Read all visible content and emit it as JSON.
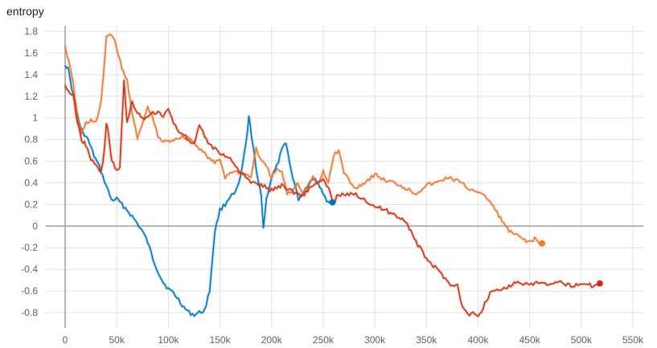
{
  "chart_data": {
    "type": "line",
    "title": "entropy",
    "xlabel": "",
    "ylabel": "",
    "xlim": [
      0,
      560000
    ],
    "ylim": [
      -0.9,
      1.85
    ],
    "x_ticks": [
      0,
      50000,
      100000,
      150000,
      200000,
      250000,
      300000,
      350000,
      400000,
      450000,
      500000,
      550000
    ],
    "x_tick_labels": [
      "0",
      "50k",
      "100k",
      "150k",
      "200k",
      "250k",
      "300k",
      "350k",
      "400k",
      "450k",
      "500k",
      "550k"
    ],
    "y_ticks": [
      -0.8,
      -0.6,
      -0.4,
      -0.2,
      0,
      0.2,
      0.4,
      0.6,
      0.8,
      1,
      1.2,
      1.4,
      1.6,
      1.8
    ],
    "y_tick_labels": [
      "-0.8",
      "-0.6",
      "-0.4",
      "-0.2",
      "0",
      "0.2",
      "0.4",
      "0.6",
      "0.8",
      "1",
      "1.2",
      "1.4",
      "1.6",
      "1.8"
    ],
    "grid": true,
    "colors": {
      "blue": "#0077bb",
      "orange": "#ee7733",
      "red": "#cc3311",
      "axis": "#9e9e9e",
      "grid": "#e0e0e0"
    },
    "series": [
      {
        "color": "#0077bb",
        "x": [
          0,
          3000,
          8000,
          15000,
          22000,
          28000,
          33000,
          38000,
          45000,
          50000,
          55000,
          60000,
          68000,
          75000,
          80000,
          85000,
          90000,
          95000,
          100000,
          105000,
          110000,
          115000,
          120000,
          125000,
          130000,
          135000,
          140000,
          145000,
          150000,
          155000,
          160000,
          165000,
          170000,
          175000,
          178000,
          182000,
          186000,
          190000,
          192000,
          195000,
          200000,
          205000,
          210000,
          214000,
          218000,
          222000,
          226000,
          230000,
          236000,
          242000,
          248000,
          252000,
          256000,
          259000
        ],
        "values": [
          1.5,
          1.45,
          1.2,
          0.9,
          0.8,
          0.65,
          0.55,
          0.42,
          0.24,
          0.25,
          0.2,
          0.15,
          0.05,
          -0.05,
          -0.15,
          -0.3,
          -0.42,
          -0.52,
          -0.58,
          -0.62,
          -0.68,
          -0.75,
          -0.8,
          -0.82,
          -0.8,
          -0.78,
          -0.6,
          -0.05,
          0.15,
          0.2,
          0.28,
          0.3,
          0.45,
          0.75,
          1.0,
          0.75,
          0.45,
          0.3,
          -0.02,
          0.25,
          0.45,
          0.55,
          0.7,
          0.78,
          0.55,
          0.4,
          0.25,
          0.3,
          0.4,
          0.45,
          0.35,
          0.25,
          0.22,
          0.22
        ]
      },
      {
        "color": "#ee7733",
        "x": [
          0,
          3000,
          8000,
          12000,
          16000,
          20000,
          25000,
          30000,
          35000,
          40000,
          45000,
          50000,
          55000,
          60000,
          65000,
          70000,
          75000,
          80000,
          85000,
          90000,
          95000,
          100000,
          110000,
          120000,
          130000,
          140000,
          145000,
          150000,
          155000,
          160000,
          170000,
          180000,
          185000,
          190000,
          195000,
          200000,
          205000,
          210000,
          215000,
          220000,
          225000,
          230000,
          235000,
          240000,
          245000,
          250000,
          255000,
          260000,
          265000,
          270000,
          280000,
          290000,
          300000,
          310000,
          320000,
          330000,
          340000,
          350000,
          360000,
          370000,
          380000,
          390000,
          400000,
          405000,
          410000,
          420000,
          430000,
          440000,
          450000,
          455000,
          460000,
          462000
        ],
        "values": [
          1.65,
          1.55,
          1.3,
          1.0,
          0.85,
          0.95,
          0.98,
          0.95,
          1.15,
          1.75,
          1.78,
          1.65,
          1.45,
          1.35,
          1.05,
          0.8,
          0.95,
          1.1,
          1.0,
          0.82,
          0.78,
          0.78,
          0.82,
          0.82,
          0.72,
          0.62,
          0.58,
          0.62,
          0.45,
          0.5,
          0.5,
          0.45,
          0.72,
          0.6,
          0.55,
          0.45,
          0.52,
          0.5,
          0.3,
          0.32,
          0.4,
          0.32,
          0.35,
          0.45,
          0.38,
          0.5,
          0.4,
          0.65,
          0.7,
          0.5,
          0.35,
          0.4,
          0.48,
          0.42,
          0.4,
          0.35,
          0.3,
          0.38,
          0.4,
          0.45,
          0.42,
          0.35,
          0.32,
          0.28,
          0.25,
          0.1,
          -0.05,
          -0.1,
          -0.15,
          -0.12,
          -0.17,
          -0.16
        ]
      },
      {
        "color": "#cc3311",
        "x": [
          0,
          3000,
          8000,
          12000,
          16000,
          20000,
          25000,
          30000,
          35000,
          38000,
          40000,
          42000,
          45000,
          50000,
          53000,
          57000,
          60000,
          65000,
          70000,
          75000,
          80000,
          85000,
          90000,
          95000,
          100000,
          105000,
          110000,
          115000,
          120000,
          125000,
          130000,
          140000,
          150000,
          160000,
          170000,
          180000,
          190000,
          200000,
          210000,
          220000,
          230000,
          240000,
          250000,
          255000,
          260000,
          265000,
          270000,
          280000,
          290000,
          300000,
          310000,
          320000,
          330000,
          340000,
          350000,
          360000,
          370000,
          375000,
          380000,
          385000,
          390000,
          395000,
          400000,
          405000,
          410000,
          415000,
          420000,
          430000,
          440000,
          450000,
          460000,
          470000,
          480000,
          490000,
          500000,
          510000,
          518000
        ],
        "values": [
          1.3,
          1.25,
          1.2,
          0.95,
          0.8,
          0.75,
          0.62,
          0.55,
          0.5,
          0.7,
          0.95,
          0.85,
          0.62,
          0.5,
          0.55,
          1.35,
          0.95,
          1.15,
          1.05,
          1.0,
          1.0,
          1.05,
          1.05,
          1.0,
          1.1,
          0.95,
          0.88,
          0.85,
          0.78,
          0.75,
          0.92,
          0.75,
          0.68,
          0.62,
          0.5,
          0.4,
          0.38,
          0.33,
          0.38,
          0.32,
          0.28,
          0.38,
          0.42,
          0.35,
          0.22,
          0.3,
          0.28,
          0.3,
          0.25,
          0.18,
          0.15,
          0.1,
          0.05,
          -0.15,
          -0.3,
          -0.4,
          -0.5,
          -0.55,
          -0.55,
          -0.75,
          -0.82,
          -0.8,
          -0.85,
          -0.75,
          -0.65,
          -0.58,
          -0.6,
          -0.55,
          -0.52,
          -0.55,
          -0.52,
          -0.55,
          -0.52,
          -0.55,
          -0.53,
          -0.55,
          -0.53
        ]
      }
    ]
  }
}
